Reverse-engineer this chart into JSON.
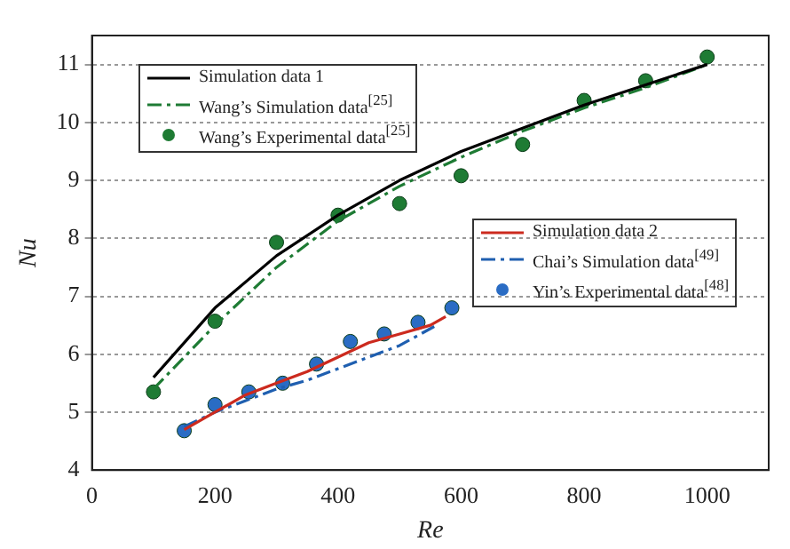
{
  "chart_data": {
    "type": "line",
    "xlabel": "Re",
    "ylabel": "Nu",
    "xlim": [
      0,
      1100
    ],
    "xticks": [
      0,
      200,
      400,
      600,
      800,
      1000
    ],
    "ylim": [
      4,
      11.5
    ],
    "yticks": [
      4,
      5,
      6,
      7,
      8,
      9,
      10,
      11
    ],
    "grid": "y",
    "legend": "top left",
    "series": [
      {
        "name": "Simulation data 1",
        "type": "line",
        "color": "#000000",
        "line_style": "solid",
        "marker": "none",
        "x": [
          100,
          200,
          300,
          400,
          500,
          600,
          700,
          800,
          900,
          1000
        ],
        "values": [
          5.6,
          6.8,
          7.7,
          8.4,
          9.0,
          9.5,
          9.9,
          10.3,
          10.65,
          11.0
        ]
      },
      {
        "name": "Wang’s Simulation data$^{[25]}$",
        "type": "line",
        "color": "#1e7b34",
        "line_style": "dashed",
        "marker": "none",
        "x": [
          100,
          200,
          300,
          400,
          500,
          600,
          700,
          800,
          900,
          1000
        ],
        "values": [
          5.4,
          6.5,
          7.5,
          8.3,
          8.9,
          9.4,
          9.85,
          10.25,
          10.6,
          11.0
        ]
      },
      {
        "name": "Wang’s Experimental data$^{[25]}$",
        "type": "scatter",
        "color": "#1e7b34",
        "marker": "circle",
        "x": [
          100,
          200,
          300,
          400,
          500,
          600,
          700,
          800,
          900,
          1000
        ],
        "values": [
          5.35,
          6.57,
          7.93,
          8.4,
          8.6,
          9.08,
          9.62,
          10.38,
          10.72,
          11.13
        ]
      },
      {
        "name": "Simulation data 2",
        "type": "line",
        "color": "#cc2a1e",
        "line_style": "solid",
        "marker": "none",
        "x": [
          150,
          200,
          250,
          300,
          350,
          400,
          450,
          500,
          550,
          575
        ],
        "values": [
          4.7,
          5.0,
          5.3,
          5.5,
          5.7,
          5.95,
          6.2,
          6.35,
          6.5,
          6.65
        ]
      },
      {
        "name": "Chai’s Simulation data$^{[49]}$",
        "type": "line",
        "color": "#1f5fb0",
        "line_style": "dashed",
        "marker": "none",
        "x": [
          150,
          200,
          250,
          300,
          350,
          400,
          450,
          500,
          560
        ],
        "values": [
          4.75,
          5.0,
          5.2,
          5.4,
          5.55,
          5.75,
          5.95,
          6.15,
          6.5
        ]
      },
      {
        "name": "Yin’s Experimental data$^{[48]}$",
        "type": "scatter",
        "color": "#2a6cc4",
        "marker": "circle",
        "x": [
          150,
          200,
          255,
          310,
          365,
          420,
          475,
          530,
          585
        ],
        "values": [
          4.68,
          5.13,
          5.35,
          5.5,
          5.83,
          6.22,
          6.35,
          6.55,
          6.8
        ]
      }
    ]
  }
}
